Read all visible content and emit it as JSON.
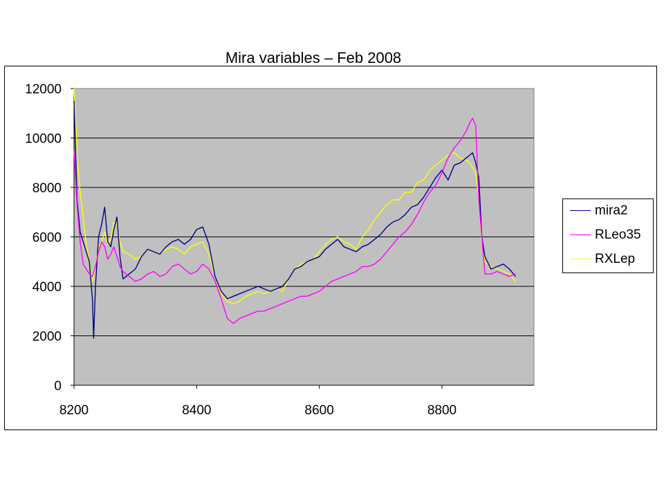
{
  "chart_data": {
    "type": "line",
    "title": "Mira variables – Feb 2008",
    "xlabel": "",
    "ylabel": "",
    "xlim": [
      8200,
      8950
    ],
    "ylim": [
      0,
      12000
    ],
    "xticks": [
      8200,
      8400,
      8600,
      8800
    ],
    "yticks": [
      0,
      2000,
      4000,
      6000,
      8000,
      10000,
      12000
    ],
    "grid": "horizontal",
    "plot_background": "#c0c0c0",
    "legend_position": "right",
    "series": [
      {
        "name": "mira2",
        "color": "#000080",
        "x": [
          8200,
          8205,
          8210,
          8215,
          8220,
          8225,
          8230,
          8232,
          8235,
          8240,
          8245,
          8250,
          8255,
          8260,
          8265,
          8270,
          8275,
          8280,
          8290,
          8300,
          8310,
          8320,
          8330,
          8340,
          8350,
          8360,
          8370,
          8380,
          8390,
          8400,
          8410,
          8420,
          8430,
          8440,
          8450,
          8460,
          8470,
          8480,
          8490,
          8500,
          8510,
          8520,
          8530,
          8540,
          8550,
          8560,
          8570,
          8580,
          8590,
          8600,
          8610,
          8620,
          8630,
          8640,
          8650,
          8660,
          8670,
          8680,
          8690,
          8700,
          8710,
          8720,
          8730,
          8740,
          8750,
          8760,
          8770,
          8780,
          8790,
          8800,
          8810,
          8820,
          8830,
          8840,
          8845,
          8850,
          8855,
          8860,
          8865,
          8870,
          8880,
          8890,
          8900,
          8910,
          8920
        ],
        "y": [
          11500,
          7500,
          6200,
          5800,
          5400,
          5000,
          3500,
          1900,
          4000,
          6000,
          6500,
          7200,
          5800,
          5600,
          6300,
          6800,
          5200,
          4300,
          4500,
          4700,
          5200,
          5500,
          5400,
          5300,
          5600,
          5800,
          5900,
          5700,
          5900,
          6300,
          6400,
          5700,
          4400,
          3800,
          3500,
          3600,
          3700,
          3800,
          3900,
          4000,
          3900,
          3800,
          3900,
          4000,
          4300,
          4700,
          4800,
          5000,
          5100,
          5200,
          5500,
          5700,
          5900,
          5600,
          5500,
          5400,
          5600,
          5700,
          5900,
          6100,
          6400,
          6600,
          6700,
          6900,
          7200,
          7300,
          7600,
          8000,
          8400,
          8700,
          8300,
          8900,
          9000,
          9200,
          9300,
          9400,
          9000,
          8400,
          6000,
          5200,
          4700,
          4800,
          4900,
          4700,
          4400
        ]
      },
      {
        "name": "RLeo35",
        "color": "#ff00ff",
        "x": [
          8200,
          8205,
          8210,
          8215,
          8220,
          8225,
          8230,
          8235,
          8240,
          8245,
          8250,
          8255,
          8260,
          8265,
          8270,
          8275,
          8280,
          8290,
          8300,
          8310,
          8320,
          8330,
          8340,
          8350,
          8360,
          8370,
          8380,
          8390,
          8400,
          8410,
          8420,
          8430,
          8440,
          8450,
          8460,
          8470,
          8480,
          8490,
          8500,
          8510,
          8520,
          8530,
          8540,
          8550,
          8560,
          8570,
          8580,
          8590,
          8600,
          8610,
          8620,
          8630,
          8640,
          8650,
          8660,
          8670,
          8680,
          8690,
          8700,
          8710,
          8720,
          8730,
          8740,
          8750,
          8760,
          8770,
          8780,
          8790,
          8800,
          8810,
          8820,
          8830,
          8840,
          8845,
          8850,
          8855,
          8860,
          8865,
          8870,
          8880,
          8890,
          8900,
          8910,
          8920
        ],
        "y": [
          9500,
          7300,
          5800,
          4900,
          4700,
          4500,
          4400,
          4800,
          5400,
          5800,
          5600,
          5100,
          5300,
          5600,
          5200,
          4800,
          4600,
          4400,
          4200,
          4300,
          4500,
          4600,
          4400,
          4500,
          4800,
          4900,
          4700,
          4500,
          4600,
          4900,
          4700,
          4200,
          3500,
          2700,
          2500,
          2700,
          2800,
          2900,
          3000,
          3000,
          3100,
          3200,
          3300,
          3400,
          3500,
          3600,
          3600,
          3700,
          3800,
          4000,
          4200,
          4300,
          4400,
          4500,
          4600,
          4800,
          4800,
          4900,
          5100,
          5400,
          5700,
          6000,
          6200,
          6500,
          6900,
          7400,
          7800,
          8100,
          8600,
          9200,
          9600,
          9900,
          10300,
          10600,
          10800,
          10500,
          7500,
          6000,
          4500,
          4500,
          4600,
          4500,
          4400,
          4500
        ]
      },
      {
        "name": "RXLep",
        "color": "#ffff00",
        "x": [
          8200,
          8203,
          8207,
          8210,
          8215,
          8220,
          8225,
          8230,
          8235,
          8240,
          8245,
          8250,
          8255,
          8260,
          8265,
          8270,
          8275,
          8280,
          8290,
          8300,
          8310,
          8320,
          8330,
          8340,
          8350,
          8360,
          8370,
          8380,
          8390,
          8400,
          8410,
          8420,
          8430,
          8440,
          8450,
          8460,
          8470,
          8480,
          8490,
          8500,
          8510,
          8520,
          8530,
          8540,
          8550,
          8560,
          8570,
          8580,
          8590,
          8600,
          8610,
          8620,
          8630,
          8640,
          8650,
          8660,
          8670,
          8680,
          8690,
          8700,
          8710,
          8720,
          8730,
          8740,
          8750,
          8760,
          8770,
          8780,
          8790,
          8800,
          8810,
          8820,
          8830,
          8840,
          8845,
          8850,
          8855,
          8860,
          8865,
          8870,
          8880,
          8890,
          8900,
          8910,
          8920
        ],
        "y": [
          12000,
          10500,
          8700,
          7800,
          6800,
          5700,
          5000,
          4200,
          4800,
          5600,
          5800,
          6200,
          5700,
          5900,
          6600,
          6500,
          5800,
          5400,
          5300,
          5100,
          5200,
          5500,
          5400,
          5300,
          5500,
          5600,
          5500,
          5300,
          5600,
          5700,
          5800,
          5300,
          4400,
          3700,
          3400,
          3300,
          3400,
          3600,
          3700,
          3800,
          3700,
          3800,
          3900,
          3800,
          4300,
          4700,
          4900,
          5000,
          5100,
          5400,
          5700,
          5900,
          6000,
          5800,
          5700,
          5500,
          6000,
          6300,
          6700,
          7000,
          7300,
          7500,
          7500,
          7800,
          7800,
          8200,
          8300,
          8700,
          8900,
          9100,
          9300,
          9400,
          9200,
          9100,
          9000,
          8800,
          8600,
          7500,
          5800,
          5000,
          4800,
          4700,
          4600,
          4500,
          4200
        ]
      }
    ]
  }
}
